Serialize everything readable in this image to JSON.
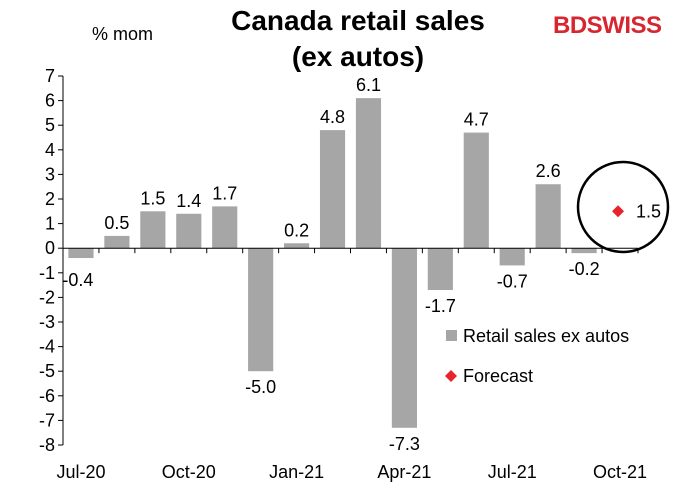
{
  "brand": {
    "part1": "BD",
    "part2": "SWISS"
  },
  "chart_data": {
    "type": "bar",
    "title_line1": "Canada retail sales",
    "title_line2": "(ex autos)",
    "ylabel": "% mom",
    "ylim": [
      -8,
      7
    ],
    "yticks": [
      7,
      6,
      5,
      4,
      3,
      2,
      1,
      0,
      -1,
      -2,
      -3,
      -4,
      -5,
      -6,
      -7,
      -8
    ],
    "categories": [
      "Jul-20",
      "Aug-20",
      "Sep-20",
      "Oct-20",
      "Nov-20",
      "Dec-20",
      "Jan-21",
      "Feb-21",
      "Mar-21",
      "Apr-21",
      "May-21",
      "Jun-21",
      "Jul-21",
      "Aug-21",
      "Sep-21",
      "Oct-21"
    ],
    "x_tick_labels": [
      {
        "index": 0,
        "label": "Jul-20"
      },
      {
        "index": 3,
        "label": "Oct-20"
      },
      {
        "index": 6,
        "label": "Jan-21"
      },
      {
        "index": 9,
        "label": "Apr-21"
      },
      {
        "index": 12,
        "label": "Jul-21"
      },
      {
        "index": 15,
        "label": "Oct-21"
      }
    ],
    "series": [
      {
        "name": "Retail sales ex autos",
        "color": "#a6a6a6",
        "values": [
          -0.4,
          0.5,
          1.5,
          1.4,
          1.7,
          -5.0,
          0.2,
          4.8,
          6.1,
          -7.3,
          -1.7,
          4.7,
          -0.7,
          2.6,
          -0.2,
          null
        ],
        "labels": [
          "-0.4",
          "0.5",
          "1.5",
          "1.4",
          "1.7",
          "-5.0",
          "0.2",
          "4.8",
          "6.1",
          "-7.3",
          "-1.7",
          "4.7",
          "-0.7",
          "2.6",
          "-0.2",
          ""
        ]
      },
      {
        "name": "Forecast",
        "color": "#e8232a",
        "marker": "diamond",
        "index": 15,
        "value": 1.5,
        "label": "1.5"
      }
    ],
    "legend_position": "right",
    "annotation": "circle around forecast point",
    "grid": false
  }
}
